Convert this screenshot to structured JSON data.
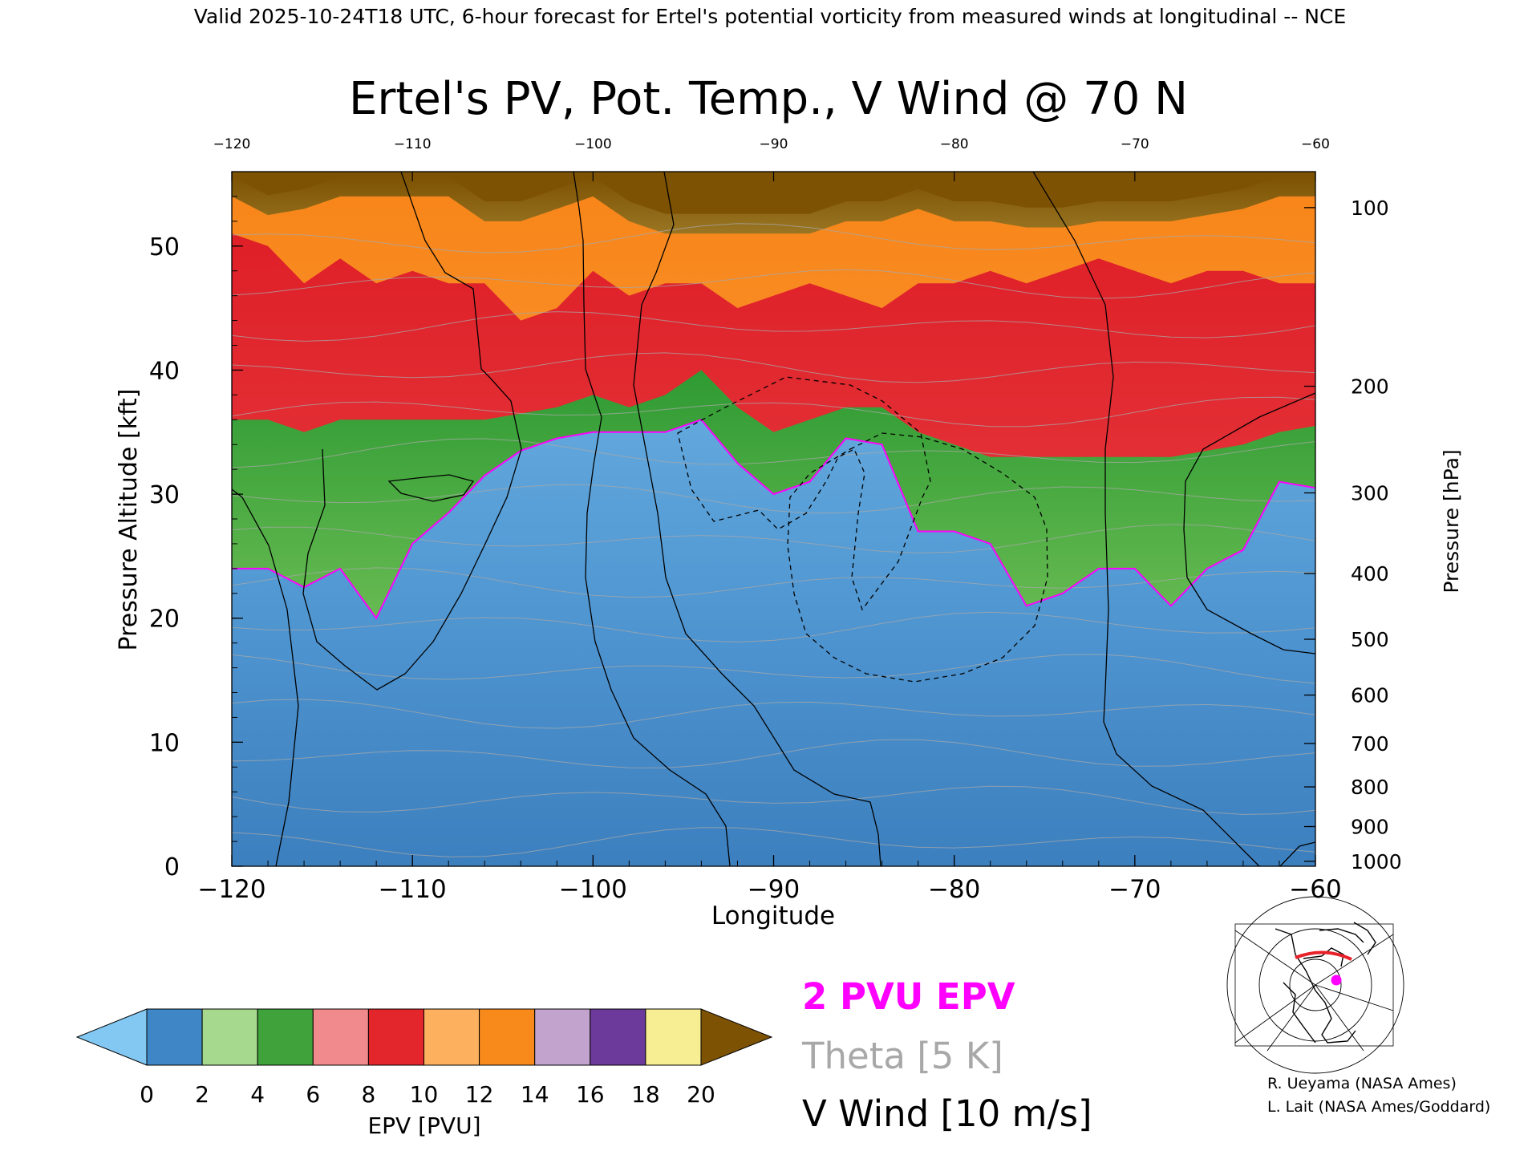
{
  "header": "Valid 2025-10-24T18 UTC, 6-hour forecast for Ertel's potential vorticity from measured winds at longitudinal -- NCE",
  "chart_data": {
    "type": "heatmap",
    "title": "Ertel's PV, Pot. Temp., V Wind @ 70 N",
    "xlabel": "Longitude",
    "ylabel_left": "Pressure Altitude [kft]",
    "ylabel_right": "Pressure [hPa]",
    "xlim": [
      -120,
      -60
    ],
    "ylim": [
      0,
      56
    ],
    "x_ticks": [
      "-120",
      "-110",
      "-100",
      "-90",
      "-80",
      "-70",
      "-60"
    ],
    "top_ticks": [
      "-120",
      "-110",
      "-100",
      "-90",
      "-80",
      "-70",
      "-60"
    ],
    "y_ticks": [
      "0",
      "10",
      "20",
      "30",
      "40",
      "50"
    ],
    "pressure_ticks": [
      {
        "label": "100",
        "kft": 53.1
      },
      {
        "label": "200",
        "kft": 38.7
      },
      {
        "label": "300",
        "kft": 30.1
      },
      {
        "label": "400",
        "kft": 23.6
      },
      {
        "label": "500",
        "kft": 18.3
      },
      {
        "label": "600",
        "kft": 13.8
      },
      {
        "label": "700",
        "kft": 9.9
      },
      {
        "label": "800",
        "kft": 6.4
      },
      {
        "label": "900",
        "kft": 3.2
      },
      {
        "label": "1000",
        "kft": 0.4
      }
    ],
    "grid": false,
    "epv_band_kft": {
      "x": [
        -120,
        -118,
        -116,
        -114,
        -112,
        -110,
        -108,
        -106,
        -104,
        -102,
        -100,
        -98,
        -96,
        -94,
        -92,
        -90,
        -88,
        -86,
        -84,
        -82,
        -80,
        -78,
        -76,
        -74,
        -72,
        -70,
        -68,
        -66,
        -64,
        -62,
        -60
      ],
      "two_pvu": [
        24,
        24,
        22.5,
        24,
        20,
        26,
        28.5,
        31.5,
        33.5,
        34.5,
        35,
        35,
        35,
        36,
        32.5,
        30,
        31,
        34.5,
        34,
        27,
        27,
        26,
        21,
        22,
        24,
        24,
        21,
        24,
        25.5,
        31,
        30.5
      ],
      "green_top": [
        36,
        36,
        35,
        36,
        36,
        36,
        36,
        36,
        36.5,
        37,
        38,
        37,
        38,
        40,
        37,
        35,
        36,
        37,
        37,
        35,
        34,
        33,
        33,
        33,
        33,
        33,
        33,
        33.5,
        34,
        35,
        35.5
      ],
      "red_top": [
        51,
        50,
        47,
        49,
        47,
        48,
        47,
        47,
        44,
        45,
        48,
        46,
        47,
        47,
        45,
        46,
        47,
        46,
        45,
        47,
        47,
        48,
        47,
        48,
        49,
        48,
        47,
        48,
        48,
        47,
        47
      ],
      "orange_top": [
        54,
        52.5,
        53,
        54,
        54,
        54,
        54,
        52,
        52,
        53,
        54,
        52,
        51,
        51,
        51,
        51,
        51,
        52,
        52,
        53,
        52,
        52,
        51.5,
        51.5,
        52,
        52,
        52,
        52.5,
        53,
        54,
        54
      ]
    },
    "theta_levels_k": [
      270,
      280,
      290,
      300,
      310,
      320,
      330,
      340,
      350,
      360,
      370,
      380,
      390,
      400,
      410
    ],
    "v_wind_contours_ms": [
      -10,
      0,
      10,
      30
    ],
    "colorbar": {
      "label": "EPV [PVU]",
      "ticks": [
        "0",
        "2",
        "4",
        "6",
        "8",
        "10",
        "12",
        "14",
        "16",
        "18",
        "20"
      ],
      "colors": [
        "#82c8f3",
        "#3f86c6",
        "#a6d88e",
        "#3fa23a",
        "#f08a8c",
        "#e2262c",
        "#fdb05e",
        "#f88a1c",
        "#c1a3cd",
        "#6c3a9a",
        "#f7ee93",
        "#7d5203"
      ]
    }
  },
  "legend": {
    "epv": "2 PVU EPV",
    "theta": "Theta [5 K]",
    "vwind": "V Wind [10 m/s]",
    "epv_color": "#ff00ff",
    "theta_color": "#a8a8a8",
    "vwind_color": "#000000"
  },
  "credits": {
    "line1": "R. Ueyama (NASA Ames)",
    "line2": "L. Lait (NASA Ames/Goddard)"
  },
  "map_inset": {
    "cross_section_color": "#e8222b",
    "marker_color": "#ff00ff"
  }
}
